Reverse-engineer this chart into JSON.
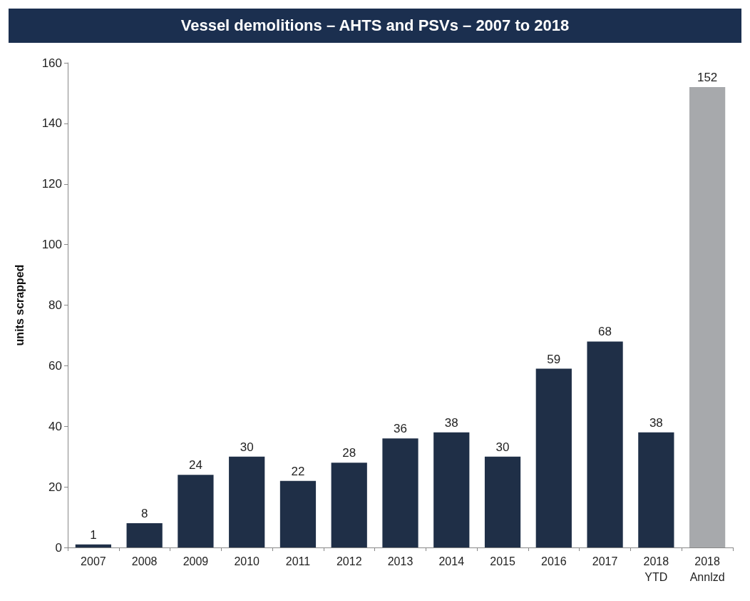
{
  "chart_data": {
    "type": "bar",
    "title": "Vessel demolitions – AHTS and PSVs – 2007 to 2018",
    "ylabel": "units scrapped",
    "categories": [
      "2007",
      "2008",
      "2009",
      "2010",
      "2011",
      "2012",
      "2013",
      "2014",
      "2015",
      "2016",
      "2017",
      "2018\nYTD",
      "2018\nAnnlzd"
    ],
    "values": [
      1,
      8,
      24,
      30,
      22,
      28,
      36,
      38,
      30,
      59,
      68,
      38,
      152
    ],
    "colors": [
      "#1f2f47",
      "#1f2f47",
      "#1f2f47",
      "#1f2f47",
      "#1f2f47",
      "#1f2f47",
      "#1f2f47",
      "#1f2f47",
      "#1f2f47",
      "#1f2f47",
      "#1f2f47",
      "#1f2f47",
      "#a7a9ac"
    ],
    "ylim": [
      0,
      160
    ],
    "yticks": [
      0,
      20,
      40,
      60,
      80,
      100,
      120,
      140,
      160
    ],
    "grid": false,
    "data_labels": true
  }
}
